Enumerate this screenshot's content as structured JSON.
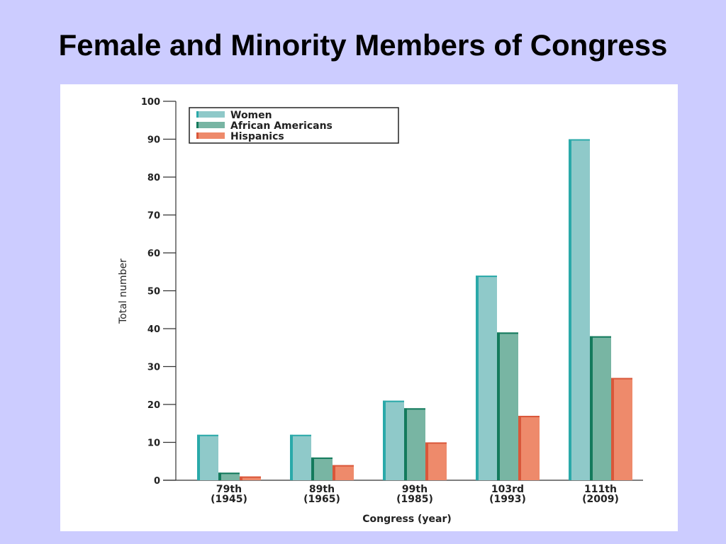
{
  "slide": {
    "title": "Female and Minority Members of Congress"
  },
  "chart_data": {
    "type": "bar",
    "title": "",
    "xlabel": "Congress (year)",
    "ylabel": "Total number",
    "ylim": [
      0,
      100
    ],
    "yticks": [
      0,
      10,
      20,
      30,
      40,
      50,
      60,
      70,
      80,
      90,
      100
    ],
    "grid": false,
    "legend_position": "top-left",
    "categories": [
      {
        "line1": "79th",
        "line2": "(1945)"
      },
      {
        "line1": "89th",
        "line2": "(1965)"
      },
      {
        "line1": "99th",
        "line2": "(1985)"
      },
      {
        "line1": "103rd",
        "line2": "(1993)"
      },
      {
        "line1": "111th",
        "line2": "(2009)"
      }
    ],
    "series": [
      {
        "name": "Women",
        "color": "#8fc9c9",
        "edge": "#2aa9a9",
        "values": [
          12,
          12,
          21,
          54,
          90
        ]
      },
      {
        "name": "African Americans",
        "color": "#78b5a3",
        "edge": "#137a5c",
        "values": [
          2,
          6,
          19,
          39,
          38
        ]
      },
      {
        "name": "Hispanics",
        "color": "#ee8a6b",
        "edge": "#d9573a",
        "values": [
          1,
          4,
          10,
          17,
          27
        ]
      }
    ]
  }
}
